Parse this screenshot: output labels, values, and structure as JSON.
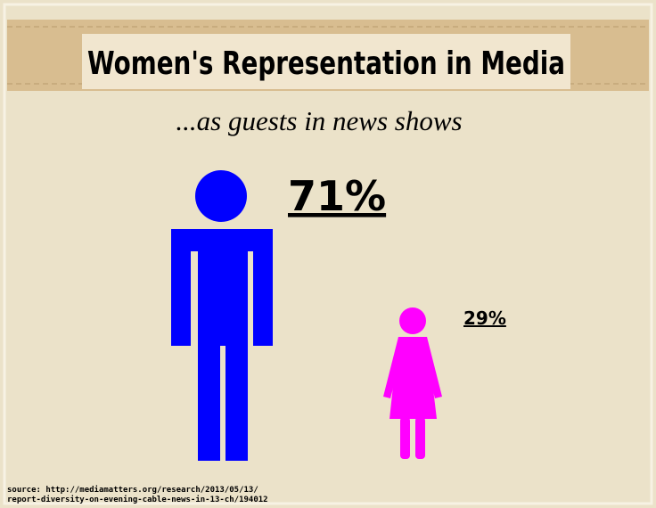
{
  "header": {
    "title": "Women's Representation in Media",
    "subtitle": "...as guests in news shows"
  },
  "figures": [
    {
      "label": "71%"
    },
    {
      "label": "29%"
    }
  ],
  "source": [
    "source: http://mediamatters.org/research/2013/05/13/",
    "report-diversity-on-evening-cable-news-in-13-ch/194012"
  ]
}
